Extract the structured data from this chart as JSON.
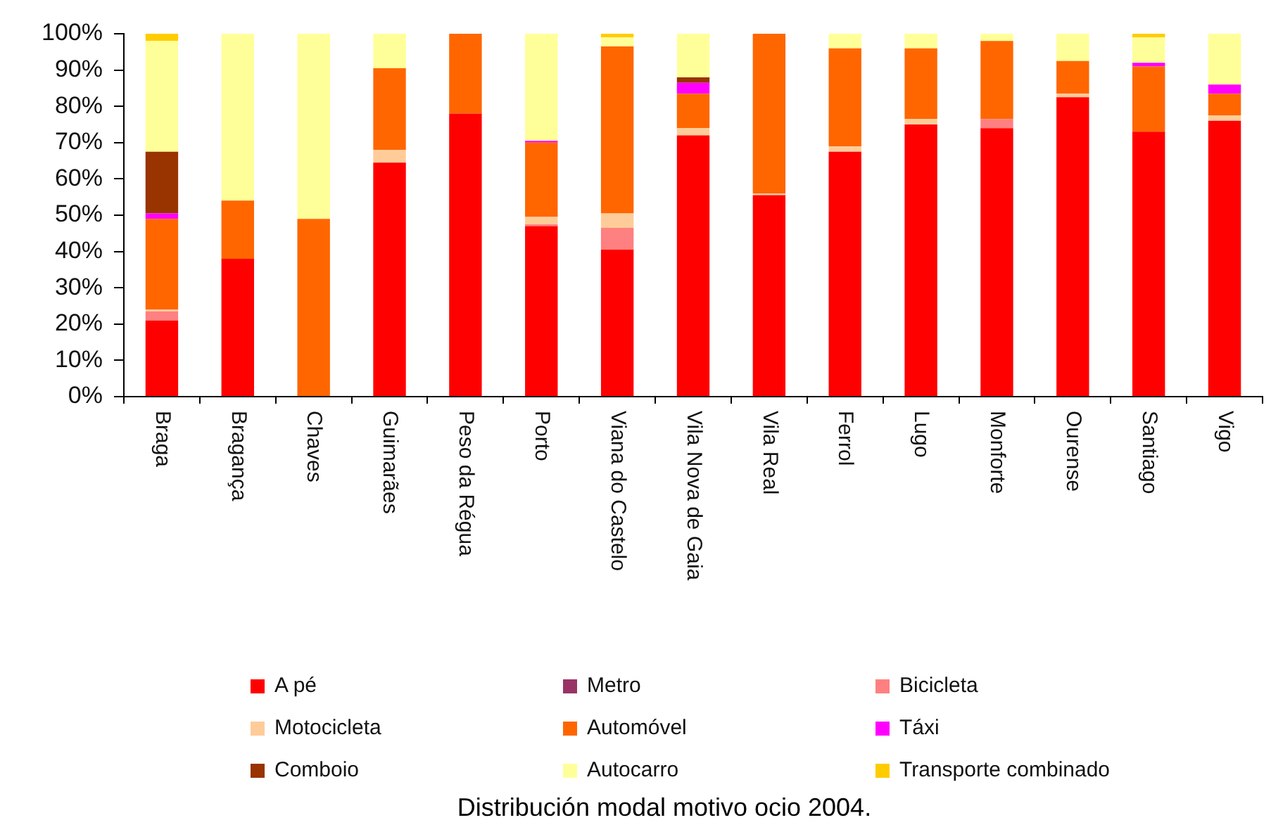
{
  "chart_data": {
    "type": "bar",
    "stacked": true,
    "legend": "bottom",
    "categories": [
      "Braga",
      "Bragança",
      "Chaves",
      "Guimarães",
      "Peso da Régua",
      "Porto",
      "Viana do Castelo",
      "Vila Nova de Gaia",
      "Vila Real",
      "Ferrol",
      "Lugo",
      "Monforte",
      "Ourense",
      "Santiago",
      "Vigo"
    ],
    "ylim": [
      0,
      100
    ],
    "yticks": [
      {
        "value": 0,
        "label": "0%"
      },
      {
        "value": 10,
        "label": "10%"
      },
      {
        "value": 20,
        "label": "20%"
      },
      {
        "value": 30,
        "label": "30%"
      },
      {
        "value": 40,
        "label": "40%"
      },
      {
        "value": 50,
        "label": "50%"
      },
      {
        "value": 60,
        "label": "60%"
      },
      {
        "value": 70,
        "label": "70%"
      },
      {
        "value": 80,
        "label": "80%"
      },
      {
        "value": 90,
        "label": "90%"
      },
      {
        "value": 100,
        "label": "100%"
      }
    ],
    "series": [
      {
        "name": "A pé",
        "color": "#ff0000",
        "values": [
          21,
          38,
          null,
          64.5,
          78,
          47,
          40.5,
          72,
          55.5,
          67.5,
          75,
          74,
          82.5,
          73,
          76
        ]
      },
      {
        "name": "Metro",
        "color": "#993366",
        "values": [
          null,
          null,
          null,
          null,
          null,
          null,
          null,
          null,
          null,
          null,
          null,
          null,
          null,
          null,
          null
        ]
      },
      {
        "name": "Bicicleta",
        "color": "#ff8080",
        "values": [
          2.5,
          null,
          null,
          null,
          null,
          0.5,
          6,
          null,
          null,
          null,
          null,
          2.5,
          null,
          null,
          null
        ]
      },
      {
        "name": "Motocicleta",
        "color": "#ffcc99",
        "values": [
          0.5,
          null,
          null,
          3.5,
          null,
          2,
          4,
          2,
          0.5,
          1.5,
          1.5,
          null,
          1,
          null,
          1.5
        ]
      },
      {
        "name": "Automóvel",
        "color": "#ff6600",
        "values": [
          25,
          16,
          49,
          22.5,
          22,
          20.5,
          46,
          9.5,
          44,
          27,
          19.5,
          21.5,
          9,
          18,
          6
        ]
      },
      {
        "name": "Táxi",
        "color": "#ff00ff",
        "values": [
          1.5,
          null,
          null,
          null,
          null,
          0.5,
          null,
          3,
          null,
          null,
          null,
          null,
          null,
          1,
          2.5
        ]
      },
      {
        "name": "Comboio",
        "color": "#993300",
        "values": [
          17,
          null,
          null,
          null,
          null,
          null,
          null,
          1.5,
          null,
          null,
          null,
          null,
          null,
          null,
          null
        ]
      },
      {
        "name": "Autocarro",
        "color": "#ffff99",
        "values": [
          30.5,
          46,
          51,
          9.5,
          null,
          29.5,
          2.5,
          12,
          null,
          4,
          4,
          2,
          7.5,
          7,
          14
        ]
      },
      {
        "name": "Transporte combinado",
        "color": "#ffcc00",
        "values": [
          2,
          null,
          null,
          null,
          null,
          null,
          1,
          null,
          null,
          null,
          null,
          null,
          null,
          1,
          null
        ]
      }
    ],
    "annotations": [
      "Distribución modal motivo ocio 2004."
    ]
  }
}
